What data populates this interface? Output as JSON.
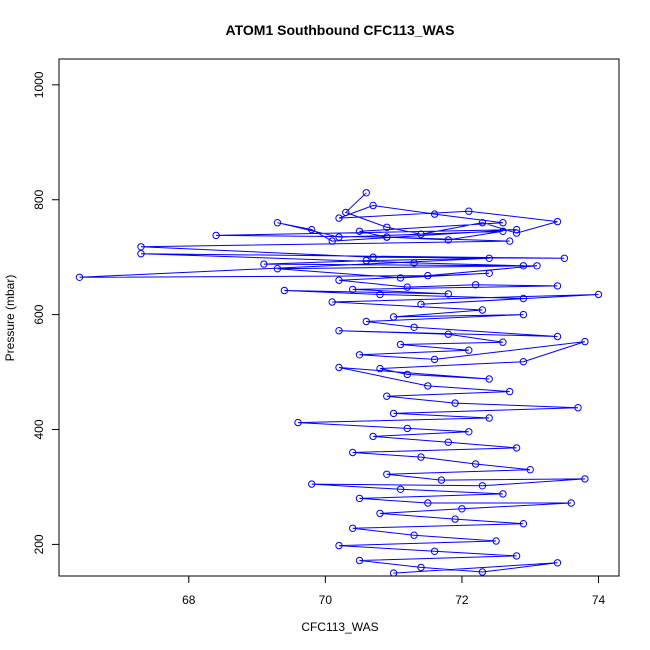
{
  "chart_data": {
    "type": "line",
    "title": "ATOM1 Southbound CFC113_WAS",
    "xlabel": "CFC113_WAS",
    "ylabel": "Pressure (mbar)",
    "xlim": [
      66.1,
      74.3
    ],
    "ylim": [
      1045,
      145
    ],
    "y_reversed": true,
    "x_ticks": [
      68,
      70,
      72,
      74
    ],
    "x_tick_labels": [
      "68",
      "70",
      "72",
      "74"
    ],
    "y_ticks": [
      200,
      400,
      600,
      800,
      1000
    ],
    "y_tick_labels": [
      "200",
      "400",
      "600",
      "800",
      "1000"
    ],
    "color": "#0000ff",
    "marker": "open-circle",
    "grid": false,
    "series": [
      {
        "name": "CFC113_WAS",
        "points": [
          [
            70.6,
            812
          ],
          [
            70.3,
            778
          ],
          [
            70.9,
            752
          ],
          [
            71.4,
            740
          ],
          [
            72.3,
            760
          ],
          [
            72.8,
            742
          ],
          [
            73.4,
            762
          ],
          [
            72.1,
            780
          ],
          [
            70.2,
            768
          ],
          [
            70.7,
            790
          ],
          [
            71.6,
            775
          ],
          [
            72.6,
            760
          ],
          [
            70.5,
            745
          ],
          [
            70.9,
            735
          ],
          [
            71.8,
            730
          ],
          [
            72.6,
            745
          ],
          [
            70.2,
            735
          ],
          [
            69.3,
            760
          ],
          [
            69.8,
            748
          ],
          [
            70.1,
            728
          ],
          [
            72.8,
            748
          ],
          [
            68.4,
            738
          ],
          [
            70.9,
            735
          ],
          [
            72.7,
            728
          ],
          [
            67.3,
            718
          ],
          [
            70.7,
            700
          ],
          [
            73.5,
            698
          ],
          [
            67.3,
            706
          ],
          [
            71.3,
            690
          ],
          [
            72.9,
            685
          ],
          [
            69.1,
            688
          ],
          [
            70.6,
            694
          ],
          [
            72.4,
            698
          ],
          [
            66.4,
            665
          ],
          [
            71.5,
            668
          ],
          [
            73.1,
            685
          ],
          [
            69.3,
            680
          ],
          [
            71.1,
            664
          ],
          [
            72.4,
            672
          ],
          [
            70.2,
            660
          ],
          [
            71.2,
            648
          ],
          [
            72.2,
            652
          ],
          [
            73.4,
            650
          ],
          [
            70.4,
            644
          ],
          [
            71.8,
            636
          ],
          [
            69.4,
            642
          ],
          [
            70.8,
            635
          ],
          [
            72.9,
            628
          ],
          [
            71.4,
            618
          ],
          [
            74.0,
            635
          ],
          [
            70.1,
            622
          ],
          [
            72.3,
            608
          ],
          [
            71.0,
            596
          ],
          [
            72.9,
            600
          ],
          [
            70.6,
            588
          ],
          [
            71.3,
            578
          ],
          [
            73.4,
            562
          ],
          [
            70.2,
            572
          ],
          [
            71.8,
            566
          ],
          [
            72.6,
            552
          ],
          [
            71.1,
            548
          ],
          [
            72.1,
            538
          ],
          [
            70.5,
            530
          ],
          [
            71.6,
            522
          ],
          [
            73.8,
            553
          ],
          [
            72.9,
            518
          ],
          [
            70.8,
            506
          ],
          [
            71.2,
            496
          ],
          [
            72.4,
            488
          ],
          [
            70.2,
            508
          ],
          [
            71.5,
            476
          ],
          [
            72.7,
            466
          ],
          [
            70.9,
            458
          ],
          [
            71.9,
            446
          ],
          [
            73.7,
            438
          ],
          [
            71.0,
            428
          ],
          [
            72.4,
            420
          ],
          [
            69.6,
            412
          ],
          [
            71.2,
            402
          ],
          [
            72.1,
            396
          ],
          [
            70.7,
            388
          ],
          [
            71.8,
            378
          ],
          [
            72.8,
            368
          ],
          [
            70.4,
            360
          ],
          [
            71.4,
            352
          ],
          [
            72.2,
            340
          ],
          [
            73.0,
            330
          ],
          [
            70.9,
            322
          ],
          [
            71.7,
            312
          ],
          [
            73.8,
            314
          ],
          [
            72.3,
            302
          ],
          [
            69.8,
            305
          ],
          [
            71.1,
            296
          ],
          [
            72.6,
            288
          ],
          [
            70.5,
            280
          ],
          [
            71.5,
            272
          ],
          [
            73.6,
            272
          ],
          [
            72.0,
            262
          ],
          [
            70.8,
            254
          ],
          [
            71.9,
            244
          ],
          [
            72.9,
            236
          ],
          [
            70.4,
            228
          ],
          [
            71.3,
            216
          ],
          [
            72.5,
            206
          ],
          [
            70.2,
            198
          ],
          [
            71.6,
            188
          ],
          [
            72.8,
            180
          ],
          [
            70.5,
            172
          ],
          [
            71.4,
            160
          ],
          [
            72.3,
            152
          ],
          [
            73.4,
            168
          ],
          [
            71.0,
            150
          ]
        ]
      }
    ]
  }
}
